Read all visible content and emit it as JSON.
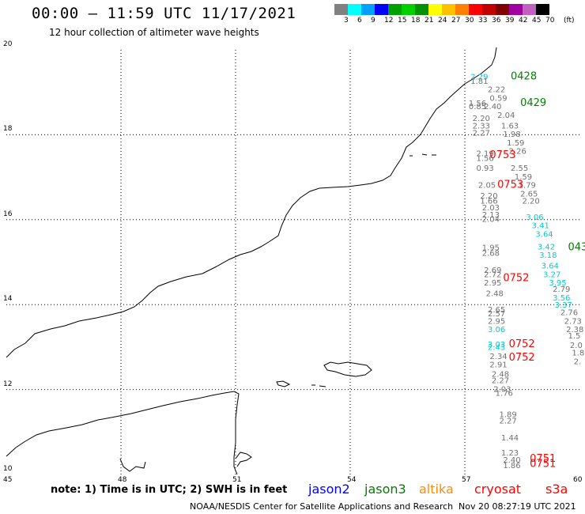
{
  "header": {
    "title": "00:00 – 11:59 UTC 11/17/2021",
    "subtitle": "12 hour collection of altimeter wave heights"
  },
  "legend": {
    "colors": [
      "#808080",
      "#00ffff",
      "#00a0ff",
      "#0000ff",
      "#00a000",
      "#00d000",
      "#009000",
      "#ffff00",
      "#ffc000",
      "#ff8000",
      "#ff0000",
      "#c00000",
      "#800000",
      "#a000a0",
      "#c060c0",
      "#000000"
    ],
    "labels": [
      "3",
      "6",
      "9",
      "12",
      "15",
      "18",
      "21",
      "24",
      "27",
      "30",
      "33",
      "36",
      "39",
      "42",
      "45",
      "70",
      "(ft)"
    ]
  },
  "axes": {
    "y_labels": [
      "20",
      "18",
      "16",
      "14",
      "12",
      "10"
    ],
    "x_labels": [
      "45",
      "48",
      "51",
      "54",
      "57",
      "60"
    ]
  },
  "footer": {
    "note": "note: 1) Time is in UTC; 2) SWH is in feet",
    "satellites": [
      {
        "name": "jason2",
        "color": "#0000ff"
      },
      {
        "name": "jason3",
        "color": "#008000"
      },
      {
        "name": "altika",
        "color": "#ff8c00"
      },
      {
        "name": "cryosat",
        "color": "#ff0000"
      },
      {
        "name": "s3a",
        "color": "#ff0000"
      }
    ],
    "credit": "NOAA/NESDIS Center for Satellite Applications and Research",
    "timestamp": "Nov 20 08:27:19 UTC 2021"
  },
  "wave_labels": [
    {
      "text": "2.29",
      "color": "#00cccc",
      "lon": 57.15,
      "lat": 19.3
    },
    {
      "text": "1.81",
      "color": "#707070",
      "lon": 57.15,
      "lat": 19.2
    },
    {
      "text": "2.22",
      "color": "#707070",
      "lon": 57.6,
      "lat": 19.0
    },
    {
      "text": "0.59",
      "color": "#707070",
      "lon": 57.65,
      "lat": 18.8
    },
    {
      "text": "1.56",
      "color": "#707070",
      "lon": 57.1,
      "lat": 18.68
    },
    {
      "text": "0.85",
      "color": "#707070",
      "lon": 57.1,
      "lat": 18.6
    },
    {
      "text": "2.40",
      "color": "#707070",
      "lon": 57.5,
      "lat": 18.6
    },
    {
      "text": "2.04",
      "color": "#707070",
      "lon": 57.85,
      "lat": 18.4
    },
    {
      "text": "2.20",
      "color": "#707070",
      "lon": 57.2,
      "lat": 18.32
    },
    {
      "text": "2.33",
      "color": "#707070",
      "lon": 57.2,
      "lat": 18.15
    },
    {
      "text": "1.63",
      "color": "#707070",
      "lon": 57.95,
      "lat": 18.15
    },
    {
      "text": "2.27",
      "color": "#707070",
      "lon": 57.2,
      "lat": 17.98
    },
    {
      "text": "1.98",
      "color": "#707070",
      "lon": 58.0,
      "lat": 17.95
    },
    {
      "text": "1.59",
      "color": "#707070",
      "lon": 58.1,
      "lat": 17.75
    },
    {
      "text": "2.26",
      "color": "#707070",
      "lon": 58.15,
      "lat": 17.55
    },
    {
      "text": "2.19",
      "color": "#707070",
      "lon": 57.3,
      "lat": 17.5
    },
    {
      "text": "1.56",
      "color": "#707070",
      "lon": 57.3,
      "lat": 17.38
    },
    {
      "text": "0.93",
      "color": "#707070",
      "lon": 57.3,
      "lat": 17.15
    },
    {
      "text": "2.55",
      "color": "#707070",
      "lon": 58.2,
      "lat": 17.15
    },
    {
      "text": "1.59",
      "color": "#707070",
      "lon": 58.3,
      "lat": 16.95
    },
    {
      "text": "2.05",
      "color": "#707070",
      "lon": 57.35,
      "lat": 16.75
    },
    {
      "text": "1.79",
      "color": "#707070",
      "lon": 58.4,
      "lat": 16.75
    },
    {
      "text": "2.65",
      "color": "#707070",
      "lon": 58.45,
      "lat": 16.55
    },
    {
      "text": "2.20",
      "color": "#707070",
      "lon": 57.4,
      "lat": 16.5
    },
    {
      "text": "1.66",
      "color": "#707070",
      "lon": 57.4,
      "lat": 16.38
    },
    {
      "text": "2.20",
      "color": "#707070",
      "lon": 58.5,
      "lat": 16.38
    },
    {
      "text": "2.03",
      "color": "#707070",
      "lon": 57.45,
      "lat": 16.22
    },
    {
      "text": "3.06",
      "color": "#00cccc",
      "lon": 58.6,
      "lat": 16.0
    },
    {
      "text": "2.13",
      "color": "#707070",
      "lon": 57.45,
      "lat": 16.05
    },
    {
      "text": "2.04",
      "color": "#707070",
      "lon": 57.45,
      "lat": 15.95
    },
    {
      "text": "3.41",
      "color": "#00cccc",
      "lon": 58.75,
      "lat": 15.8
    },
    {
      "text": "3.64",
      "color": "#00cccc",
      "lon": 58.85,
      "lat": 15.6
    },
    {
      "text": "1.95",
      "color": "#707070",
      "lon": 57.45,
      "lat": 15.28
    },
    {
      "text": "3.42",
      "color": "#00cccc",
      "lon": 58.9,
      "lat": 15.3
    },
    {
      "text": "2.68",
      "color": "#707070",
      "lon": 57.45,
      "lat": 15.15
    },
    {
      "text": "3.18",
      "color": "#00cccc",
      "lon": 58.95,
      "lat": 15.1
    },
    {
      "text": "3.64",
      "color": "#00cccc",
      "lon": 59.0,
      "lat": 14.85
    },
    {
      "text": "2.69",
      "color": "#707070",
      "lon": 57.5,
      "lat": 14.75
    },
    {
      "text": "3.27",
      "color": "#00cccc",
      "lon": 59.05,
      "lat": 14.65
    },
    {
      "text": "2.72",
      "color": "#707070",
      "lon": 57.5,
      "lat": 14.65
    },
    {
      "text": "2.95",
      "color": "#707070",
      "lon": 57.5,
      "lat": 14.45
    },
    {
      "text": "3.95",
      "color": "#00cccc",
      "lon": 59.2,
      "lat": 14.45
    },
    {
      "text": "2.79",
      "color": "#707070",
      "lon": 59.3,
      "lat": 14.3
    },
    {
      "text": "2.48",
      "color": "#707070",
      "lon": 57.55,
      "lat": 14.2
    },
    {
      "text": "3.56",
      "color": "#00cccc",
      "lon": 59.3,
      "lat": 14.1
    },
    {
      "text": "3.37",
      "color": "#00cccc",
      "lon": 59.35,
      "lat": 13.93
    },
    {
      "text": "2.65",
      "color": "#707070",
      "lon": 57.6,
      "lat": 13.82
    },
    {
      "text": "2.76",
      "color": "#707070",
      "lon": 59.5,
      "lat": 13.75
    },
    {
      "text": "2.57",
      "color": "#707070",
      "lon": 57.6,
      "lat": 13.72
    },
    {
      "text": "2.95",
      "color": "#707070",
      "lon": 57.6,
      "lat": 13.55
    },
    {
      "text": "2.73",
      "color": "#707070",
      "lon": 59.6,
      "lat": 13.55
    },
    {
      "text": "3.06",
      "color": "#00cccc",
      "lon": 57.6,
      "lat": 13.35
    },
    {
      "text": "2.38",
      "color": "#707070",
      "lon": 59.65,
      "lat": 13.35
    },
    {
      "text": "1.5",
      "color": "#707070",
      "lon": 59.7,
      "lat": 13.2
    },
    {
      "text": "3.03",
      "color": "#00cccc",
      "lon": 57.6,
      "lat": 13.0
    },
    {
      "text": "2.43",
      "color": "#00cccc",
      "lon": 57.6,
      "lat": 12.93
    },
    {
      "text": "2.0",
      "color": "#707070",
      "lon": 59.75,
      "lat": 12.98
    },
    {
      "text": "2.34",
      "color": "#707070",
      "lon": 57.65,
      "lat": 12.72
    },
    {
      "text": "1.8",
      "color": "#707070",
      "lon": 59.8,
      "lat": 12.8
    },
    {
      "text": "2.91",
      "color": "#707070",
      "lon": 57.65,
      "lat": 12.52
    },
    {
      "text": "2.",
      "color": "#707070",
      "lon": 59.85,
      "lat": 12.6
    },
    {
      "text": "2.48",
      "color": "#707070",
      "lon": 57.7,
      "lat": 12.3
    },
    {
      "text": "2.27",
      "color": "#707070",
      "lon": 57.7,
      "lat": 12.15
    },
    {
      "text": "2.03",
      "color": "#707070",
      "lon": 57.75,
      "lat": 11.95
    },
    {
      "text": "1.76",
      "color": "#707070",
      "lon": 57.8,
      "lat": 11.85
    },
    {
      "text": "1.89",
      "color": "#707070",
      "lon": 57.9,
      "lat": 11.35
    },
    {
      "text": "2.27",
      "color": "#707070",
      "lon": 57.9,
      "lat": 11.2
    },
    {
      "text": "1.44",
      "color": "#707070",
      "lon": 57.95,
      "lat": 10.8
    },
    {
      "text": "1.23",
      "color": "#707070",
      "lon": 57.95,
      "lat": 10.45
    },
    {
      "text": "2.40",
      "color": "#707070",
      "lon": 58.0,
      "lat": 10.28
    },
    {
      "text": "1.86",
      "color": "#707070",
      "lon": 58.0,
      "lat": 10.15
    }
  ],
  "time_labels": [
    {
      "text": "0428",
      "color": "#008000",
      "lon": 58.2,
      "lat": 19.3
    },
    {
      "text": "0429",
      "color": "#008000",
      "lon": 58.45,
      "lat": 18.68
    },
    {
      "text": "0753",
      "color": "#ff0000",
      "lon": 57.65,
      "lat": 17.45
    },
    {
      "text": "0753",
      "color": "#ff0000",
      "lon": 57.85,
      "lat": 16.75
    },
    {
      "text": "043",
      "color": "#008000",
      "lon": 59.7,
      "lat": 15.28
    },
    {
      "text": "0752",
      "color": "#ff0000",
      "lon": 58.0,
      "lat": 14.55
    },
    {
      "text": "0752",
      "color": "#ff0000",
      "lon": 58.15,
      "lat": 13.0
    },
    {
      "text": "0752",
      "color": "#ff0000",
      "lon": 58.15,
      "lat": 12.68
    },
    {
      "text": "0751",
      "color": "#ff0000",
      "lon": 58.7,
      "lat": 10.3
    },
    {
      "text": "0751",
      "color": "#ff0000",
      "lon": 58.7,
      "lat": 10.18
    }
  ]
}
